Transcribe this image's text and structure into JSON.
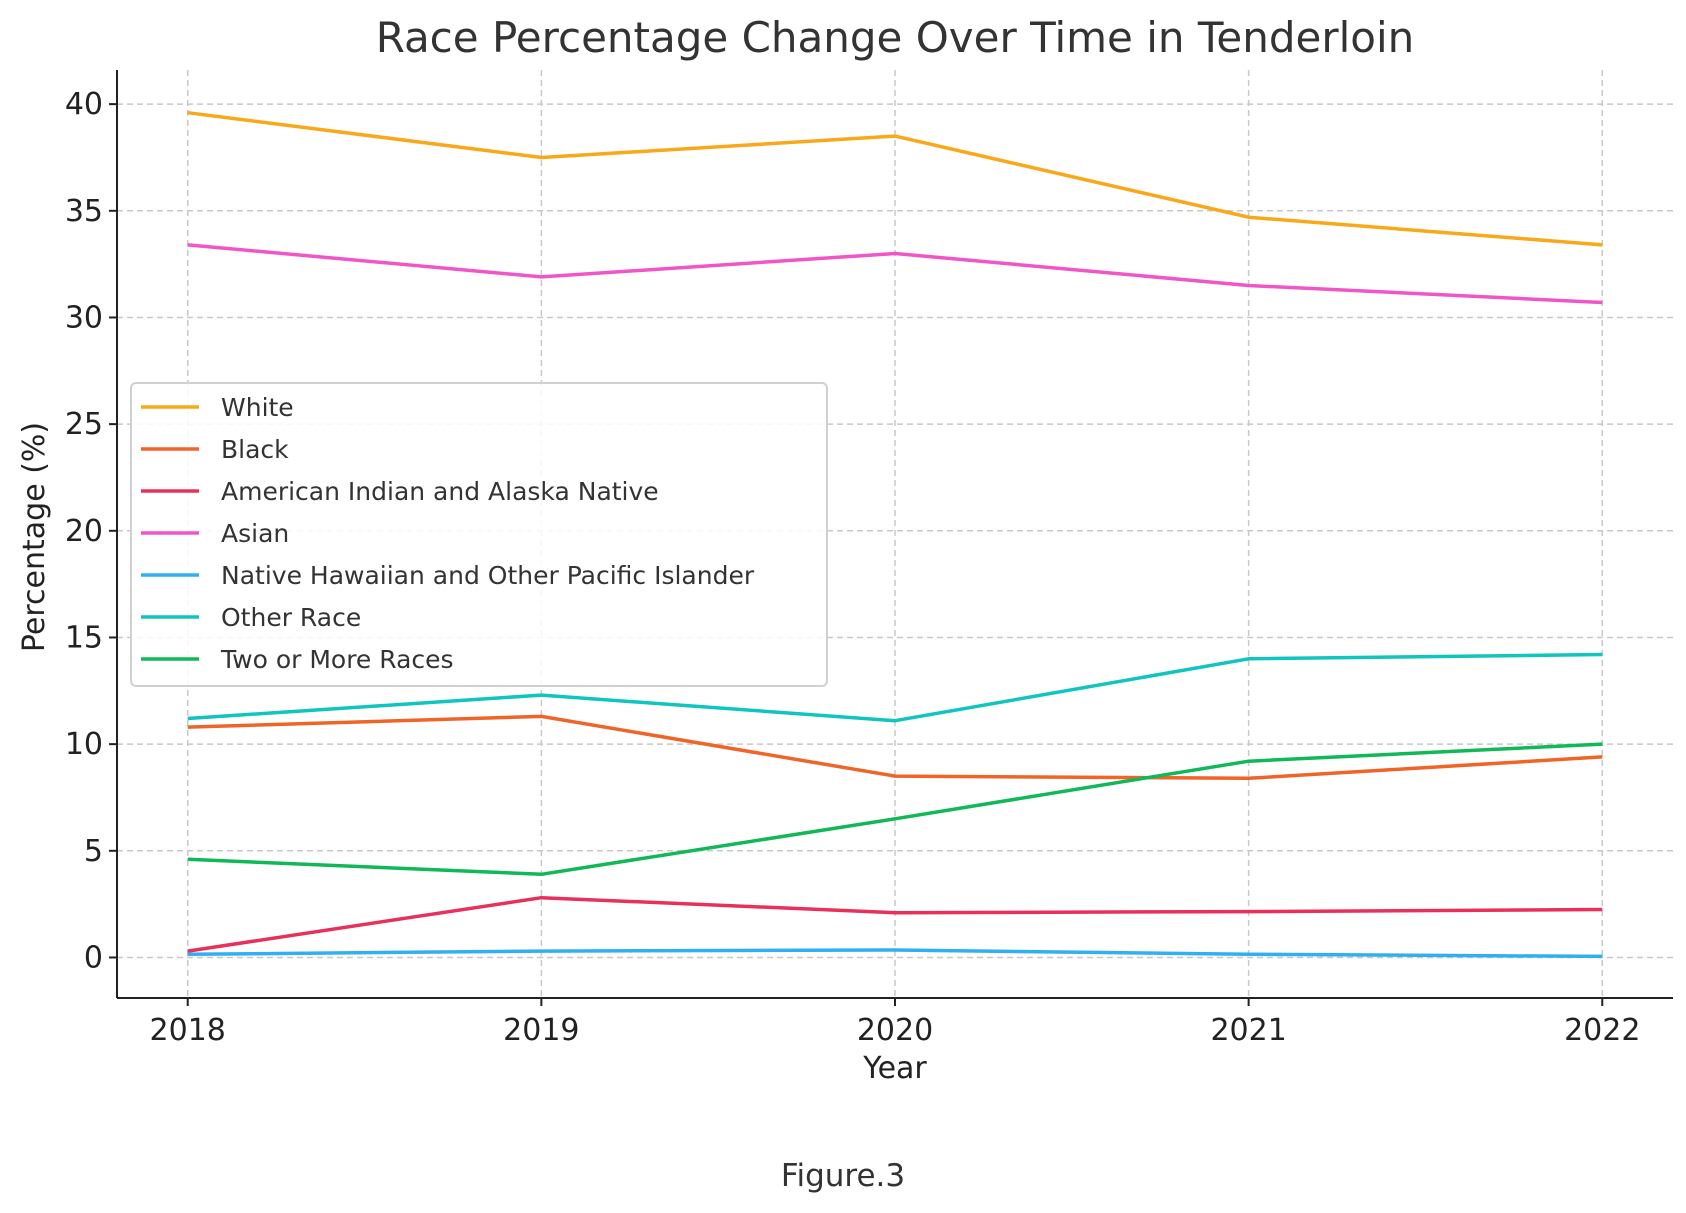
{
  "caption": "Figure.3",
  "chart_data": {
    "type": "line",
    "title": "Race Percentage Change Over Time in Tenderloin",
    "xlabel": "Year",
    "ylabel": "Percentage (%)",
    "x": [
      "2018",
      "2019",
      "2020",
      "2021",
      "2022"
    ],
    "xlim": [
      2017.8,
      2022.2
    ],
    "ylim": [
      -1.9,
      41.6
    ],
    "yticks": [
      0,
      5,
      10,
      15,
      20,
      25,
      30,
      35,
      40
    ],
    "grid": true,
    "legend_position": "center-left",
    "series": [
      {
        "name": "White",
        "color": "#f8a818",
        "values": [
          39.6,
          37.5,
          38.5,
          34.7,
          33.4
        ]
      },
      {
        "name": "Black",
        "color": "#f06428",
        "values": [
          10.8,
          11.3,
          8.5,
          8.4,
          9.4
        ]
      },
      {
        "name": "American Indian and Alaska Native",
        "color": "#e8305a",
        "values": [
          0.3,
          2.8,
          2.1,
          2.15,
          2.25
        ]
      },
      {
        "name": "Asian",
        "color": "#f056c8",
        "values": [
          33.4,
          31.9,
          33.0,
          31.5,
          30.7
        ]
      },
      {
        "name": "Native Hawaiian and Other Pacific Islander",
        "color": "#30b0f0",
        "values": [
          0.15,
          0.3,
          0.35,
          0.15,
          0.05
        ]
      },
      {
        "name": "Other Race",
        "color": "#10c4c0",
        "values": [
          11.2,
          12.3,
          11.1,
          14.0,
          14.2
        ]
      },
      {
        "name": "Two or More Races",
        "color": "#10b858",
        "values": [
          4.6,
          3.9,
          6.5,
          9.2,
          10.0
        ]
      }
    ]
  }
}
